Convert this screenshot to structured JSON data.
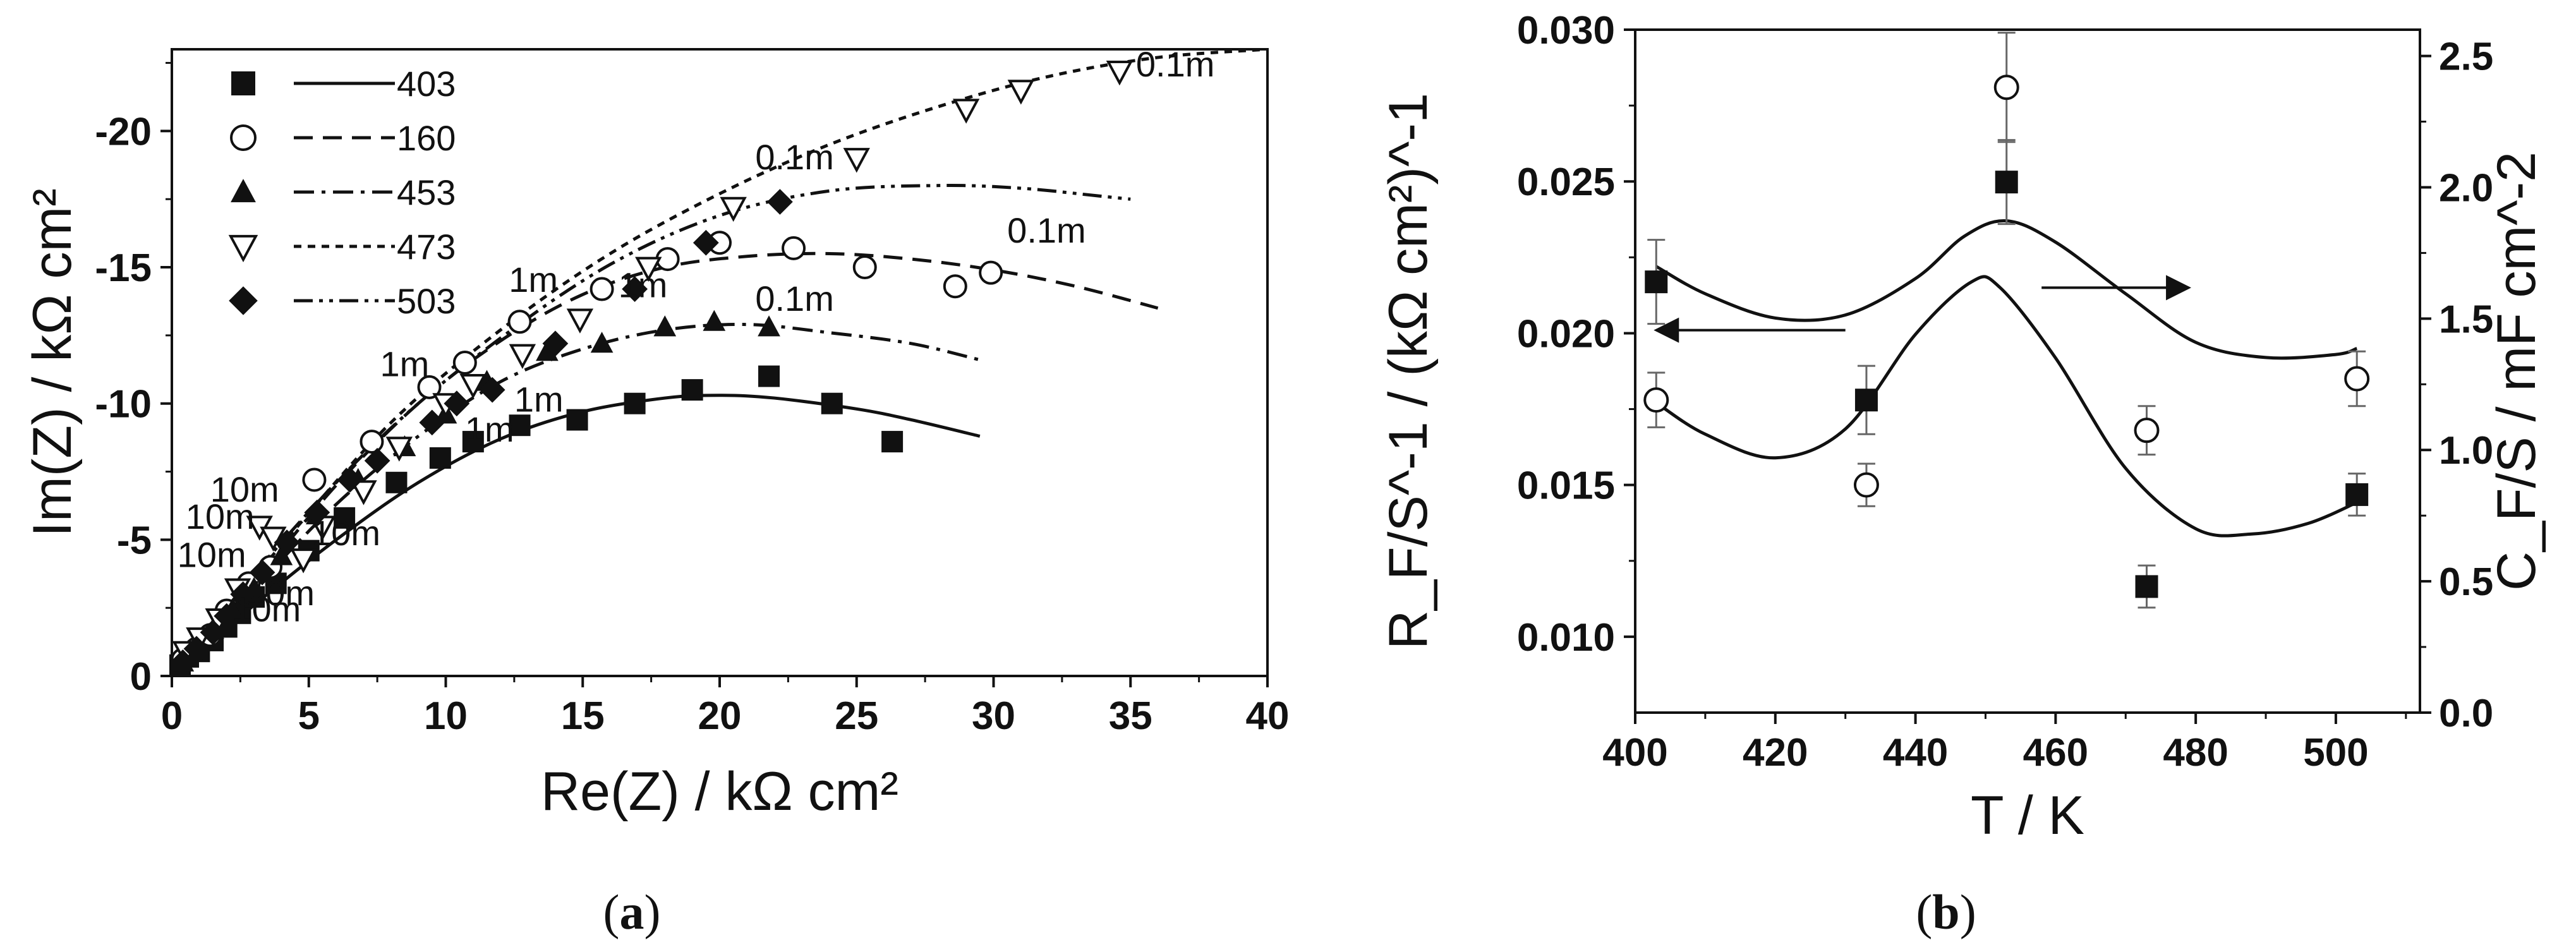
{
  "panels": {
    "a": {
      "tag_open": "(",
      "tag_letter": "a",
      "tag_close": ")"
    },
    "b": {
      "tag_open": "(",
      "tag_letter": "b",
      "tag_close": ")"
    }
  },
  "chart_data": [
    {
      "id": "a",
      "type": "scatter",
      "title": "",
      "xlabel": "Re(Z) / kΩ cm²",
      "ylabel": "Im(Z) / kΩ cm²",
      "xlim": [
        0,
        40
      ],
      "ylim": [
        0,
        -23
      ],
      "y_inverted": true,
      "x_ticks": [
        0,
        5,
        10,
        15,
        20,
        25,
        30,
        35,
        40
      ],
      "y_ticks": [
        0,
        -5,
        -10,
        -15,
        -20
      ],
      "x_tick_labels": [
        "0",
        "5",
        "10",
        "15",
        "20",
        "25",
        "30",
        "35",
        "40"
      ],
      "y_tick_labels": [
        "0",
        "-5",
        "-10",
        "-15",
        "-20"
      ],
      "legend_position": "top-left",
      "series": [
        {
          "name": "403",
          "marker": "square-filled",
          "line": "solid",
          "points": [
            [
              0.3,
              -0.4
            ],
            [
              0.6,
              -0.7
            ],
            [
              1.0,
              -0.9
            ],
            [
              1.5,
              -1.3
            ],
            [
              2.0,
              -1.8
            ],
            [
              2.5,
              -2.3
            ],
            [
              3.0,
              -2.9
            ],
            [
              3.8,
              -3.4
            ],
            [
              5.0,
              -4.6
            ],
            [
              6.3,
              -5.8
            ],
            [
              8.2,
              -7.1
            ],
            [
              9.8,
              -8.0
            ],
            [
              11.0,
              -8.6
            ],
            [
              12.7,
              -9.2
            ],
            [
              14.8,
              -9.4
            ],
            [
              16.9,
              -10.0
            ],
            [
              19.0,
              -10.5
            ],
            [
              21.8,
              -11.0
            ],
            [
              24.1,
              -10.0
            ],
            [
              26.3,
              -8.6
            ]
          ],
          "fit": [
            [
              0,
              0
            ],
            [
              3,
              -2.6
            ],
            [
              6,
              -5.0
            ],
            [
              9,
              -7.1
            ],
            [
              12,
              -8.7
            ],
            [
              15,
              -9.7
            ],
            [
              18,
              -10.2
            ],
            [
              20,
              -10.3
            ],
            [
              22,
              -10.2
            ],
            [
              25,
              -9.8
            ],
            [
              27,
              -9.4
            ],
            [
              29.5,
              -8.8
            ]
          ]
        },
        {
          "name": "160",
          "marker": "circle-open",
          "line": "dashed",
          "points": [
            [
              0.4,
              -0.6
            ],
            [
              0.9,
              -1.0
            ],
            [
              1.4,
              -1.5
            ],
            [
              2.0,
              -2.4
            ],
            [
              2.8,
              -3.4
            ],
            [
              3.6,
              -4.0
            ],
            [
              5.2,
              -7.2
            ],
            [
              7.3,
              -8.6
            ],
            [
              9.4,
              -10.6
            ],
            [
              10.7,
              -11.5
            ],
            [
              12.7,
              -13.0
            ],
            [
              15.7,
              -14.2
            ],
            [
              18.1,
              -15.3
            ],
            [
              20.0,
              -15.9
            ],
            [
              22.7,
              -15.7
            ],
            [
              25.3,
              -15.0
            ],
            [
              28.6,
              -14.3
            ],
            [
              29.9,
              -14.8
            ]
          ],
          "fit": [
            [
              0,
              0
            ],
            [
              3,
              -3.4
            ],
            [
              6,
              -7.0
            ],
            [
              9,
              -10.0
            ],
            [
              12,
              -12.3
            ],
            [
              15,
              -14.0
            ],
            [
              18,
              -15.0
            ],
            [
              21,
              -15.4
            ],
            [
              24,
              -15.5
            ],
            [
              27,
              -15.3
            ],
            [
              30,
              -14.9
            ],
            [
              33,
              -14.3
            ],
            [
              36,
              -13.5
            ]
          ],
          "annotations": [
            [
              "10m",
              0.2,
              -4.0
            ],
            [
              "1m",
              7.6,
              -11.0
            ],
            [
              "0.1m",
              30.5,
              -15.9
            ]
          ]
        },
        {
          "name": "453",
          "marker": "triangle-up-filled",
          "line": "dash-dot",
          "points": [
            [
              0.4,
              -0.5
            ],
            [
              0.9,
              -1.0
            ],
            [
              1.5,
              -1.7
            ],
            [
              2.2,
              -2.4
            ],
            [
              3.0,
              -3.2
            ],
            [
              4.0,
              -4.4
            ],
            [
              5.3,
              -5.9
            ],
            [
              6.8,
              -7.2
            ],
            [
              8.5,
              -8.4
            ],
            [
              10.0,
              -9.6
            ],
            [
              11.5,
              -10.8
            ],
            [
              13.7,
              -11.9
            ],
            [
              15.7,
              -12.2
            ],
            [
              18.0,
              -12.8
            ],
            [
              19.8,
              -13.0
            ],
            [
              21.8,
              -12.8
            ]
          ],
          "fit": [
            [
              0,
              0
            ],
            [
              3,
              -3.2
            ],
            [
              6,
              -6.3
            ],
            [
              9,
              -8.8
            ],
            [
              12,
              -10.8
            ],
            [
              15,
              -12.0
            ],
            [
              18,
              -12.7
            ],
            [
              21,
              -12.9
            ],
            [
              24,
              -12.6
            ],
            [
              27,
              -12.2
            ],
            [
              29.5,
              -11.6
            ]
          ],
          "annotations": [
            [
              "10m",
              2.2,
              -2.0
            ],
            [
              "1m",
              12.5,
              -9.7
            ],
            [
              "0.1m",
              21.3,
              -13.4
            ]
          ]
        },
        {
          "name": "473",
          "marker": "triangle-down-open",
          "line": "dotted",
          "points": [
            [
              0.5,
              -0.9
            ],
            [
              1.0,
              -1.4
            ],
            [
              1.7,
              -2.1
            ],
            [
              2.4,
              -3.2
            ],
            [
              3.2,
              -5.5
            ],
            [
              3.7,
              -5.1
            ],
            [
              4.8,
              -4.3
            ],
            [
              5.5,
              -5.5
            ],
            [
              7.0,
              -6.8
            ],
            [
              8.3,
              -8.4
            ],
            [
              10.0,
              -10.0
            ],
            [
              11.0,
              -10.7
            ],
            [
              12.8,
              -11.8
            ],
            [
              14.9,
              -13.1
            ],
            [
              17.4,
              -15.0
            ],
            [
              20.5,
              -17.2
            ],
            [
              25.0,
              -19.0
            ],
            [
              29.0,
              -20.8
            ],
            [
              31.0,
              -21.5
            ],
            [
              34.6,
              -22.2
            ]
          ],
          "fit": [
            [
              0,
              0
            ],
            [
              4,
              -4.8
            ],
            [
              8,
              -9.3
            ],
            [
              12,
              -12.7
            ],
            [
              16,
              -15.5
            ],
            [
              20,
              -17.7
            ],
            [
              24,
              -19.5
            ],
            [
              28,
              -20.9
            ],
            [
              32,
              -22.0
            ],
            [
              36,
              -22.7
            ],
            [
              40,
              -23.0
            ]
          ],
          "annotations": [
            [
              "10m",
              1.4,
              -6.4
            ],
            [
              "10m",
              5.1,
              -4.8
            ],
            [
              "1m",
              12.3,
              -14.1
            ],
            [
              "0.1m",
              21.3,
              -18.6
            ],
            [
              "0.1m",
              35.2,
              -22.0
            ]
          ]
        },
        {
          "name": "503",
          "marker": "diamond-filled",
          "line": "dash-dot-dot",
          "points": [
            [
              0.4,
              -0.5
            ],
            [
              0.9,
              -1.0
            ],
            [
              1.5,
              -1.6
            ],
            [
              2.0,
              -2.2
            ],
            [
              2.6,
              -3.0
            ],
            [
              3.3,
              -3.8
            ],
            [
              4.2,
              -4.9
            ],
            [
              5.3,
              -6.0
            ],
            [
              6.5,
              -7.2
            ],
            [
              7.5,
              -7.9
            ],
            [
              9.5,
              -9.3
            ],
            [
              10.4,
              -10.0
            ],
            [
              11.7,
              -10.5
            ],
            [
              14.0,
              -12.2
            ],
            [
              16.9,
              -14.2
            ],
            [
              19.5,
              -15.9
            ],
            [
              22.2,
              -17.4
            ]
          ],
          "fit": [
            [
              0,
              0
            ],
            [
              4,
              -4.9
            ],
            [
              8,
              -9.1
            ],
            [
              12,
              -12.4
            ],
            [
              16,
              -15.1
            ],
            [
              20,
              -16.9
            ],
            [
              24,
              -17.8
            ],
            [
              28,
              -18.0
            ],
            [
              31,
              -17.9
            ],
            [
              34,
              -17.6
            ],
            [
              35,
              -17.5
            ]
          ],
          "annotations": [
            [
              "10m",
              2.7,
              -2.6
            ],
            [
              "1m",
              16.3,
              -13.9
            ]
          ]
        }
      ],
      "extra_annotations": [
        [
          "10m",
          0.5,
          -5.4
        ],
        [
          "1m",
          10.7,
          -8.6
        ]
      ]
    },
    {
      "id": "b",
      "type": "scatter",
      "title": "",
      "xlabel": "T / K",
      "ylabel_left": "R_F/S^-1 / (kΩ cm²)^-1",
      "ylabel_right": "C_F/S / mF cm^-2",
      "xlim": [
        400,
        512
      ],
      "ylim_left": [
        0.0075,
        0.03
      ],
      "ylim_right": [
        0.0,
        2.6
      ],
      "x_ticks": [
        400,
        420,
        440,
        460,
        480,
        500
      ],
      "x_tick_labels": [
        "400",
        "420",
        "440",
        "460",
        "480",
        "500"
      ],
      "y_left_ticks": [
        0.01,
        0.015,
        0.02,
        0.025,
        0.03
      ],
      "y_left_tick_labels": [
        "0.010",
        "0.015",
        "0.020",
        "0.025",
        "0.030"
      ],
      "y_right_ticks": [
        0.0,
        0.5,
        1.0,
        1.5,
        2.0,
        2.5
      ],
      "y_right_tick_labels": [
        "0.0",
        "0.5",
        "1.0",
        "1.5",
        "2.0",
        "2.5"
      ],
      "series": [
        {
          "name": "R_F/S^-1",
          "axis": "left",
          "marker": "circle-open",
          "x": [
            403,
            433,
            453,
            473,
            503
          ],
          "y": [
            0.0178,
            0.015,
            0.0281,
            0.0168,
            0.0185
          ],
          "yerr": [
            0.0009,
            0.0007,
            0.0018,
            0.0008,
            0.0009
          ]
        },
        {
          "name": "C_F/S",
          "axis": "right",
          "marker": "square-filled",
          "x": [
            403,
            433,
            453,
            473,
            503
          ],
          "y": [
            1.64,
            1.19,
            2.02,
            0.48,
            0.83
          ],
          "yerr": [
            0.16,
            0.13,
            0.16,
            0.08,
            0.08
          ]
        }
      ],
      "fit_curves": [
        {
          "axis": "left",
          "name": "fit-left",
          "points": [
            [
              403,
              0.0222
            ],
            [
              410,
              0.0213
            ],
            [
              420,
              0.0205
            ],
            [
              430,
              0.0206
            ],
            [
              440,
              0.0218
            ],
            [
              447,
              0.0232
            ],
            [
              453,
              0.0237
            ],
            [
              460,
              0.023
            ],
            [
              470,
              0.0213
            ],
            [
              480,
              0.0197
            ],
            [
              490,
              0.0192
            ],
            [
              500,
              0.0193
            ],
            [
              503,
              0.0195
            ]
          ]
        },
        {
          "axis": "right",
          "name": "fit-right",
          "points": [
            [
              403,
              1.18
            ],
            [
              410,
              1.06
            ],
            [
              420,
              0.97
            ],
            [
              430,
              1.08
            ],
            [
              440,
              1.44
            ],
            [
              448,
              1.64
            ],
            [
              452,
              1.62
            ],
            [
              460,
              1.35
            ],
            [
              470,
              0.93
            ],
            [
              480,
              0.7
            ],
            [
              488,
              0.68
            ],
            [
              496,
              0.72
            ],
            [
              503,
              0.8
            ]
          ]
        }
      ],
      "arrows": [
        {
          "name": "arrow-to-left-axis",
          "direction": "left",
          "y_axis": "left",
          "y": 0.0201,
          "x_from": 430,
          "x_to": 403
        },
        {
          "name": "arrow-to-right-axis",
          "direction": "right",
          "y_axis": "left",
          "y": 0.0215,
          "x_from": 458,
          "x_to": 479
        }
      ]
    }
  ]
}
